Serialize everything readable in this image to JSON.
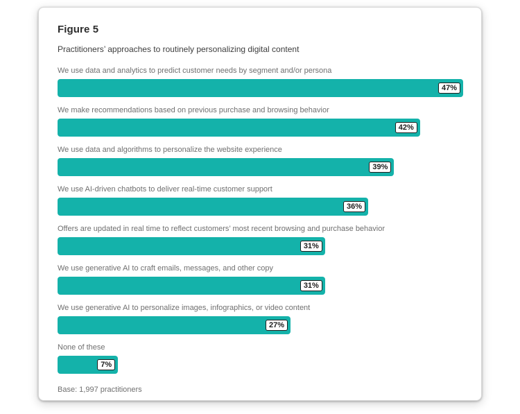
{
  "figure": {
    "title": "Figure 5",
    "subtitle": "Practitioners’ approaches to routinely personalizing digital content",
    "base_note": "Base: 1,997 practitioners"
  },
  "chart_data": {
    "type": "bar",
    "orientation": "horizontal",
    "title": "Figure 5",
    "subtitle": "Practitioners’ approaches to routinely personalizing digital content",
    "categories": [
      "We use data and analytics to predict customer needs by segment and/or persona",
      "We make recommendations based on previous purchase and browsing behavior",
      "We use data and algorithms to personalize the website experience",
      "We use AI-driven chatbots to deliver real-time customer support",
      "Offers are updated in real time to reflect customers’ most recent browsing and purchase behavior",
      "We use generative AI to craft emails, messages, and other copy",
      "We use generative AI to personalize images, infographics, or video content",
      "None of these"
    ],
    "values": [
      47,
      42,
      39,
      36,
      31,
      31,
      27,
      7
    ],
    "value_suffix": "%",
    "xlim": [
      0,
      47
    ],
    "grid": false,
    "legend": "none",
    "value_labels": "pill at right end of each bar",
    "bar_color": "#14b2aa",
    "pill_background": "#ffffff",
    "pill_border_color": "#1d1d1d",
    "base_note": "Base: 1,997 practitioners"
  }
}
